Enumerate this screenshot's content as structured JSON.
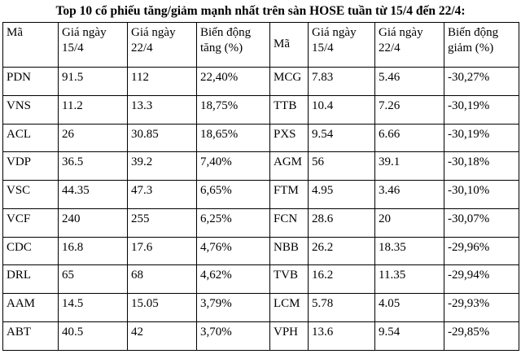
{
  "title": "Top 10 cổ phiếu tăng/giảm mạnh nhất trên sàn HOSE tuần từ 15/4 đến 22/4:",
  "table": {
    "headers": [
      "Mã",
      "Giá ngày 15/4",
      "Giá ngày 22/4",
      "Biến động tăng (%)",
      "Mã",
      "Giá ngày 15/4",
      "Giá ngày 22/4",
      "Biến động giảm (%)"
    ],
    "rows": [
      [
        "PDN",
        "91.5",
        "112",
        "22,40%",
        "MCG",
        "7.83",
        "5.46",
        "-30,27%"
      ],
      [
        "VNS",
        "11.2",
        "13.3",
        "18,75%",
        "TTB",
        "10.4",
        "7.26",
        "-30,19%"
      ],
      [
        "ACL",
        "26",
        "30.85",
        "18,65%",
        "PXS",
        "9.54",
        "6.66",
        "-30,19%"
      ],
      [
        "VDP",
        "36.5",
        "39.2",
        "7,40%",
        "AGM",
        "56",
        "39.1",
        "-30,18%"
      ],
      [
        "VSC",
        "44.35",
        "47.3",
        "6,65%",
        "FTM",
        "4.95",
        "3.46",
        "-30,10%"
      ],
      [
        "VCF",
        "240",
        "255",
        "6,25%",
        "FCN",
        "28.6",
        "20",
        "-30,07%"
      ],
      [
        "CDC",
        "16.8",
        "17.6",
        "4,76%",
        "NBB",
        "26.2",
        "18.35",
        "-29,96%"
      ],
      [
        "DRL",
        "65",
        "68",
        "4,62%",
        "TVB",
        "16.2",
        "11.35",
        "-29,94%"
      ],
      [
        "AAM",
        "14.5",
        "15.05",
        "3,79%",
        "LCM",
        "5.78",
        "4.05",
        "-29,93%"
      ],
      [
        "ABT",
        "40.5",
        "42",
        "3,70%",
        "VPH",
        "13.6",
        "9.54",
        "-29,85%"
      ]
    ]
  }
}
